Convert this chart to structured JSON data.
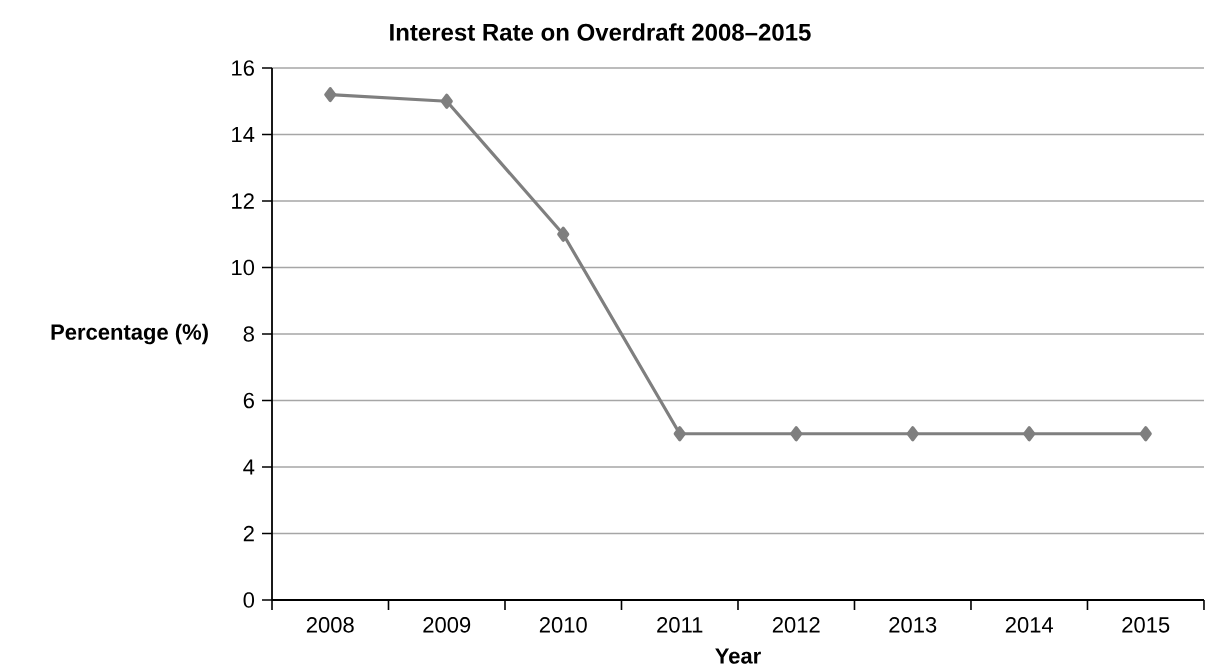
{
  "chart_data": {
    "type": "line",
    "title": "Interest Rate on Overdraft 2008–2015",
    "xlabel": "Year",
    "ylabel": "Percentage (%)",
    "categories": [
      "2008",
      "2009",
      "2010",
      "2011",
      "2012",
      "2013",
      "2014",
      "2015"
    ],
    "series": [
      {
        "color": "#7f7f7f",
        "values": [
          15.2,
          15,
          11,
          5,
          5,
          5,
          5,
          5
        ]
      }
    ],
    "ylim": [
      0,
      16
    ],
    "yticks": [
      0,
      2,
      4,
      6,
      8,
      10,
      12,
      14,
      16
    ],
    "grid": "y",
    "legend": false,
    "marker": "diamond",
    "line_style": "solid"
  }
}
